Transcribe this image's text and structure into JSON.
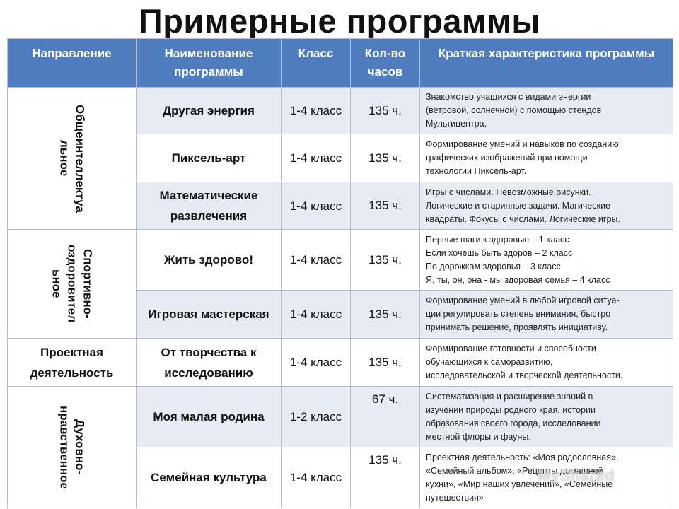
{
  "title": "Примерные программы",
  "headers": {
    "direction": "Направление",
    "name": "Наименование программы",
    "grade": "Класс",
    "hours": "Кол-во часов",
    "description": "Краткая характеристика программы"
  },
  "rows": [
    {
      "direction": "Общеинтеллектуа\nльное",
      "name": "Другая энергия",
      "grade": "1-4 класс",
      "hours": "135 ч.",
      "description": [
        "Знакомство учащихся с видами энергии",
        "(ветровой, солнечной) с помощью стендов",
        "Мультицентра."
      ]
    },
    {
      "name": "Пиксель-арт",
      "grade": "1-4 класс",
      "hours": "135 ч.",
      "description": [
        "Формирование умений и навыков по созданию",
        "графических изображений при помощи",
        "технологии Пиксель-арт."
      ]
    },
    {
      "name": "Математические развлечения",
      "grade": "1-4 класс",
      "hours": "135 ч.",
      "description": [
        "Игры с числами. Невозможные рисунки.",
        "Логические и старинные задачи. Магические",
        "квадраты. Фокусы с числами. Логические игры."
      ]
    },
    {
      "direction": "Спортивно-\nоздоровител\nьное",
      "name": "Жить здорово!",
      "grade": "1-4 класс",
      "hours": "135 ч.",
      "description": [
        "Первые шаги к здоровью – 1 класс",
        "Если хочешь быть здоров – 2 класс",
        "По дорожкам здоровья – 3 класс",
        "Я, ты, он, она - мы здоровая семья – 4 класс"
      ]
    },
    {
      "name": "Игровая мастерская",
      "grade": "1-4 класс",
      "hours": "135 ч.",
      "description": [
        "Формирование умений в любой игровой ситуа-",
        "ции регулировать степень внимания, быстро",
        "принимать решение, проявлять инициативу."
      ]
    },
    {
      "direction": "Проектная деятельность",
      "name": "От творчества к исследованию",
      "grade": "1-4 класс",
      "hours": "135 ч.",
      "description": [
        "Формирование готовности и способности",
        "обучающихся к саморазвитию,",
        "исследовательской и творческой деятельности."
      ]
    },
    {
      "direction": "Духовно-\nнравственное",
      "name": "Моя малая родина",
      "grade": "1-2 класс",
      "hours": "67 ч.",
      "description": [
        "Систематизация и расширение знаний в",
        "изучении природы родного края, истории",
        "образования своего города, исследовании",
        "местной флоры и фауны."
      ]
    },
    {
      "name": "Семейная культура",
      "grade": "1-4 класс",
      "hours": "135 ч.",
      "description": [
        "Проектная деятельность: «Моя родословная»,",
        "«Семейный альбом», «Рецепты домашней",
        "кухни», «Мир наших увлечений», «Семейные",
        "путешествия»"
      ]
    }
  ],
  "watermark": "MyShared"
}
